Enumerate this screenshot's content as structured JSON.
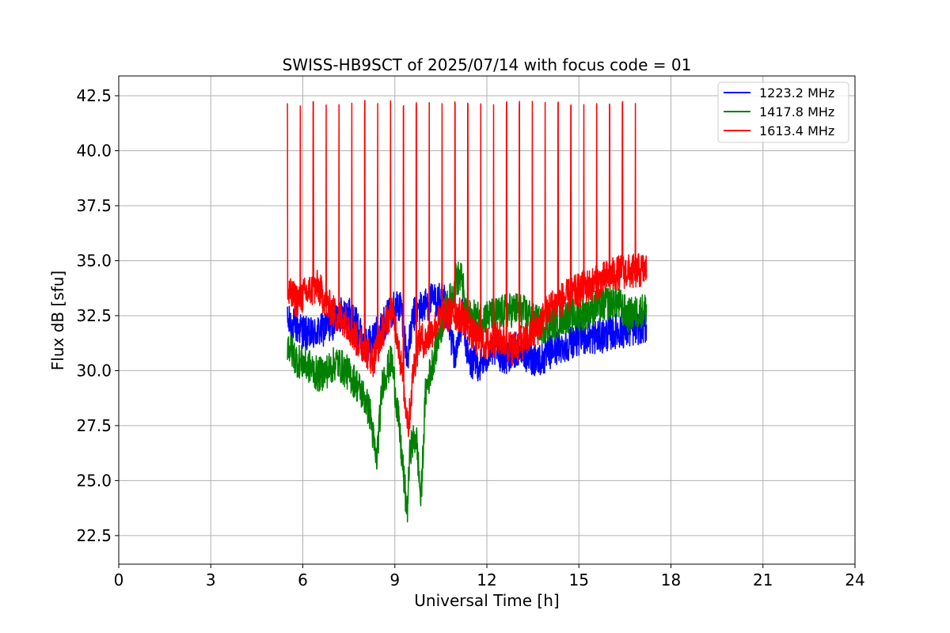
{
  "chart_data": {
    "type": "line",
    "title": "SWISS-HB9SCT of 2025/07/14 with focus code = 01",
    "xlabel": "Universal Time [h]",
    "ylabel": "Flux dB [sfu]",
    "xlim": [
      0,
      24
    ],
    "ylim": [
      21.2,
      43.4
    ],
    "xticks": [
      0,
      3,
      6,
      9,
      12,
      15,
      18,
      21,
      24
    ],
    "xtick_labels": [
      "0",
      "3",
      "6",
      "9",
      "12",
      "15",
      "18",
      "21",
      "24"
    ],
    "yticks": [
      22.5,
      25.0,
      27.5,
      30.0,
      32.5,
      35.0,
      37.5,
      40.0,
      42.5
    ],
    "ytick_labels": [
      "22.5",
      "25.0",
      "27.5",
      "30.0",
      "32.5",
      "35.0",
      "37.5",
      "40.0",
      "42.5"
    ],
    "grid": true,
    "legend_position": "top-right",
    "series": [
      {
        "name": "1223.2 MHz",
        "color": "#0000ff",
        "points": [
          [
            5.5,
            32.2
          ],
          [
            5.8,
            32.0
          ],
          [
            6.2,
            31.6
          ],
          [
            6.6,
            31.8
          ],
          [
            7.0,
            32.2
          ],
          [
            7.4,
            32.8
          ],
          [
            7.8,
            32.0
          ],
          [
            8.0,
            31.0
          ],
          [
            8.3,
            31.5
          ],
          [
            8.6,
            32.0
          ],
          [
            8.9,
            32.8
          ],
          [
            9.2,
            33.0
          ],
          [
            9.4,
            30.5
          ],
          [
            9.6,
            32.5
          ],
          [
            9.8,
            32.8
          ],
          [
            10.2,
            33.2
          ],
          [
            10.6,
            33.2
          ],
          [
            10.9,
            31.0
          ],
          [
            11.0,
            30.6
          ],
          [
            11.2,
            32.6
          ],
          [
            11.4,
            30.4
          ],
          [
            11.8,
            30.3
          ],
          [
            12.2,
            31.0
          ],
          [
            12.6,
            30.6
          ],
          [
            13.0,
            31.0
          ],
          [
            13.4,
            30.6
          ],
          [
            13.8,
            30.5
          ],
          [
            14.2,
            31.0
          ],
          [
            14.6,
            31.2
          ],
          [
            15.0,
            31.5
          ],
          [
            15.4,
            31.5
          ],
          [
            15.8,
            31.6
          ],
          [
            16.2,
            31.8
          ],
          [
            16.6,
            31.8
          ],
          [
            17.0,
            32.0
          ],
          [
            17.2,
            32.0
          ]
        ]
      },
      {
        "name": "1417.8 MHz",
        "color": "#008000",
        "points": [
          [
            5.5,
            31.2
          ],
          [
            5.8,
            30.5
          ],
          [
            6.2,
            30.2
          ],
          [
            6.5,
            29.8
          ],
          [
            6.8,
            30.0
          ],
          [
            7.1,
            30.4
          ],
          [
            7.4,
            30.0
          ],
          [
            7.7,
            29.5
          ],
          [
            8.0,
            28.8
          ],
          [
            8.2,
            28.0
          ],
          [
            8.4,
            25.8
          ],
          [
            8.6,
            29.5
          ],
          [
            8.9,
            30.5
          ],
          [
            9.1,
            28.0
          ],
          [
            9.3,
            25.0
          ],
          [
            9.4,
            23.5
          ],
          [
            9.5,
            26.5
          ],
          [
            9.7,
            27.0
          ],
          [
            9.85,
            24.0
          ],
          [
            10.0,
            29.0
          ],
          [
            10.3,
            30.8
          ],
          [
            10.6,
            32.5
          ],
          [
            10.9,
            33.5
          ],
          [
            11.0,
            34.2
          ],
          [
            11.2,
            34.2
          ],
          [
            11.3,
            32.5
          ],
          [
            11.7,
            32.4
          ],
          [
            12.2,
            32.5
          ],
          [
            12.6,
            32.7
          ],
          [
            13.0,
            32.8
          ],
          [
            13.4,
            32.5
          ],
          [
            13.8,
            32.0
          ],
          [
            14.2,
            32.2
          ],
          [
            14.6,
            32.5
          ],
          [
            15.0,
            32.5
          ],
          [
            15.4,
            32.8
          ],
          [
            15.8,
            33.0
          ],
          [
            16.2,
            33.2
          ],
          [
            16.6,
            32.5
          ],
          [
            17.0,
            32.7
          ],
          [
            17.2,
            32.8
          ]
        ]
      },
      {
        "name": "1613.4 MHz",
        "color": "#ff0000",
        "points": [
          [
            5.5,
            33.5
          ],
          [
            5.8,
            33.2
          ],
          [
            6.2,
            33.6
          ],
          [
            6.5,
            33.8
          ],
          [
            6.8,
            33.0
          ],
          [
            7.1,
            32.5
          ],
          [
            7.4,
            32.3
          ],
          [
            7.7,
            31.5
          ],
          [
            8.0,
            31.0
          ],
          [
            8.3,
            30.5
          ],
          [
            8.6,
            31.8
          ],
          [
            8.9,
            32.8
          ],
          [
            9.1,
            31.5
          ],
          [
            9.3,
            29.0
          ],
          [
            9.45,
            27.5
          ],
          [
            9.6,
            30.0
          ],
          [
            9.8,
            31.5
          ],
          [
            10.0,
            31.3
          ],
          [
            10.3,
            32.0
          ],
          [
            10.6,
            32.5
          ],
          [
            10.9,
            32.6
          ],
          [
            11.2,
            32.5
          ],
          [
            11.6,
            31.5
          ],
          [
            12.0,
            31.2
          ],
          [
            12.4,
            31.5
          ],
          [
            12.8,
            31.0
          ],
          [
            13.2,
            31.3
          ],
          [
            13.6,
            31.8
          ],
          [
            14.0,
            32.8
          ],
          [
            14.4,
            33.2
          ],
          [
            14.8,
            33.5
          ],
          [
            15.2,
            33.8
          ],
          [
            15.6,
            34.0
          ],
          [
            16.0,
            34.3
          ],
          [
            16.4,
            34.5
          ],
          [
            16.8,
            34.5
          ],
          [
            17.2,
            34.6
          ]
        ],
        "spikes": {
          "peak": 42.3,
          "times": [
            5.5,
            5.92,
            6.34,
            6.76,
            7.18,
            7.6,
            8.02,
            8.44,
            8.86,
            9.28,
            9.7,
            10.12,
            10.54,
            10.96,
            11.38,
            11.8,
            12.22,
            12.64,
            13.06,
            13.48,
            13.9,
            14.32,
            14.74,
            15.16,
            15.58,
            16.0,
            16.42,
            16.84
          ]
        }
      }
    ]
  }
}
